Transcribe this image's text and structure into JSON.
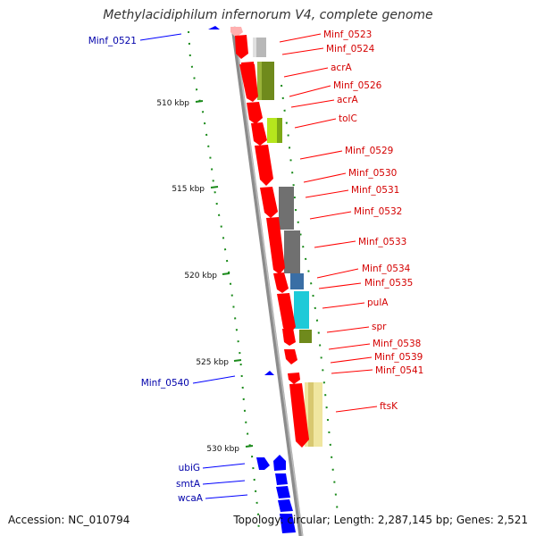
{
  "title": "Methylacidiphilum infernorum V4, complete genome",
  "footer": {
    "accession": "Accession: NC_010794",
    "summary": "Topology: circular; Length: 2,287,145 bp; Genes: 2,521"
  },
  "colors": {
    "forward": "#ff0000",
    "reverse": "#0000ff",
    "forward_label": "#d40000",
    "reverse_label": "#0000aa",
    "backbone": "#8c8c8c",
    "gc_dots": "#1a8a1a"
  },
  "ticks": [
    "510 kbp",
    "515 kbp",
    "520 kbp",
    "525 kbp",
    "530 kbp"
  ],
  "forward_genes": [
    "Minf_0523",
    "Minf_0524",
    "acrA",
    "Minf_0526",
    "acrA",
    "tolC",
    "Minf_0529",
    "Minf_0530",
    "Minf_0531",
    "Minf_0532",
    "Minf_0533",
    "Minf_0534",
    "Minf_0535",
    "pulA",
    "spr",
    "Minf_0538",
    "Minf_0539",
    "Minf_0541",
    "ftsK"
  ],
  "reverse_genes": [
    "Minf_0521",
    "Minf_0540",
    "ubiG",
    "smtA",
    "wcaA"
  ]
}
